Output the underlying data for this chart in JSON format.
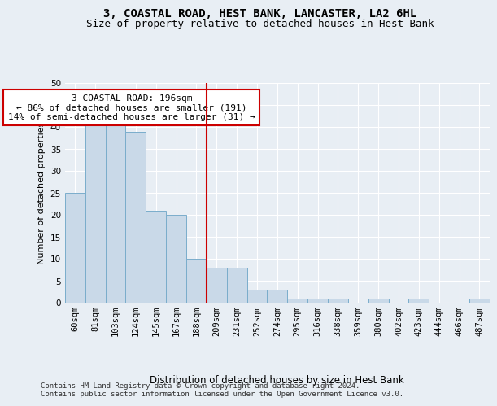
{
  "title": "3, COASTAL ROAD, HEST BANK, LANCASTER, LA2 6HL",
  "subtitle": "Size of property relative to detached houses in Hest Bank",
  "xlabel": "Distribution of detached houses by size in Hest Bank",
  "ylabel": "Number of detached properties",
  "categories": [
    "60sqm",
    "81sqm",
    "103sqm",
    "124sqm",
    "145sqm",
    "167sqm",
    "188sqm",
    "209sqm",
    "231sqm",
    "252sqm",
    "274sqm",
    "295sqm",
    "316sqm",
    "338sqm",
    "359sqm",
    "380sqm",
    "402sqm",
    "423sqm",
    "444sqm",
    "466sqm",
    "487sqm"
  ],
  "values": [
    25,
    41,
    43,
    39,
    21,
    20,
    10,
    8,
    8,
    3,
    3,
    1,
    1,
    1,
    0,
    1,
    0,
    1,
    0,
    0,
    1
  ],
  "bar_color": "#c9d9e8",
  "bar_edge_color": "#7aadcb",
  "vline_color": "#cc0000",
  "annotation_text": "3 COASTAL ROAD: 196sqm\n← 86% of detached houses are smaller (191)\n14% of semi-detached houses are larger (31) →",
  "annotation_box_color": "#ffffff",
  "annotation_box_edge_color": "#cc0000",
  "ylim": [
    0,
    50
  ],
  "yticks": [
    0,
    5,
    10,
    15,
    20,
    25,
    30,
    35,
    40,
    45,
    50
  ],
  "bg_color": "#e8eef4",
  "plot_bg_color": "#e8eef4",
  "grid_color": "#ffffff",
  "footer_text": "Contains HM Land Registry data © Crown copyright and database right 2024.\nContains public sector information licensed under the Open Government Licence v3.0.",
  "title_fontsize": 10,
  "subtitle_fontsize": 9,
  "xlabel_fontsize": 8.5,
  "ylabel_fontsize": 8,
  "tick_fontsize": 7.5,
  "annotation_fontsize": 8,
  "footer_fontsize": 6.5
}
